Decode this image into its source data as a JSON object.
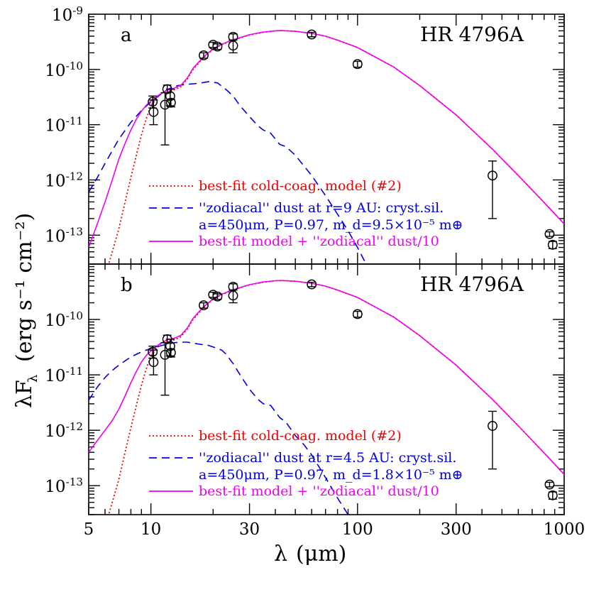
{
  "figure": {
    "xlabel_symbol": "λ",
    "xlabel_unit": "(μm)",
    "ylabel_main": "λF",
    "ylabel_sub": "λ",
    "ylabel_unit": "(erg s⁻¹ cm⁻²)"
  },
  "chart_data": [
    {
      "type": "line",
      "panel_label": "a",
      "title": "HR 4796A",
      "x_scale": "log",
      "y_scale": "log",
      "xlim": [
        5,
        1000
      ],
      "ylim": [
        3e-14,
        1e-09
      ],
      "x_ticks": [
        5,
        10,
        30,
        100,
        300,
        1000
      ],
      "x_tick_labels": [
        "5",
        "10",
        "30",
        "100",
        "300",
        "1000"
      ],
      "y_ticks": [
        1e-13,
        1e-12,
        1e-11,
        1e-10,
        1e-09
      ],
      "y_tick_labels": [
        "10⁻¹³",
        "10⁻¹²",
        "10⁻¹¹",
        "10⁻¹⁰",
        "10⁻⁹"
      ],
      "legend_position": "lower-center",
      "series": [
        {
          "name": "best-fit cold-coag. model (#2)",
          "color": "#ee0000",
          "style": "dotted",
          "x": [
            6.0,
            6.5,
            7.0,
            7.5,
            8.0,
            8.5,
            9.0,
            9.5,
            10.0,
            11.0,
            12.0,
            13.0,
            14.0,
            15.0,
            16.0,
            18.0,
            20.0,
            22.0,
            25.0,
            30.0,
            35.0,
            40.0,
            43.0,
            50.0,
            60.0,
            70.0,
            80.0,
            100.0,
            150.0,
            200.0,
            300.0,
            450.0,
            600.0,
            800.0,
            1000.0
          ],
          "y": [
            1.8e-14,
            5e-14,
            1.3e-13,
            4e-13,
            1.1e-12,
            2.8e-12,
            6.5e-12,
            1.3e-11,
            2.2e-11,
            3.5e-11,
            4.1e-11,
            4.3e-11,
            4.9e-11,
            6.7e-11,
            1e-10,
            1.65e-10,
            2.3e-10,
            2.8e-10,
            3.4e-10,
            4.2e-10,
            4.7e-10,
            5e-10,
            5.05e-10,
            4.9e-10,
            4.5e-10,
            4e-10,
            3.4e-10,
            2.5e-10,
            1.1e-10,
            5.1e-11,
            1.5e-11,
            3.6e-12,
            1.2e-12,
            3.9e-13,
            1.6e-13
          ]
        },
        {
          "name": "''zodiacal'' dust at r=9 AU: cryst.sil. a=450μm, P=0.97, m_d=9.5×10⁻⁵ m⊕",
          "color": "#0000dd",
          "style": "dashed",
          "x": [
            5.0,
            5.5,
            6.0,
            7.0,
            8.0,
            9.0,
            10.0,
            11.0,
            12.0,
            13.0,
            15.0,
            17.0,
            19.0,
            21.0,
            23.0,
            25.0,
            27.0,
            30.0,
            33.0,
            35.0,
            38.0,
            42.0,
            45.0,
            50.0,
            60.0,
            70.0,
            80.0,
            90.0,
            100.0,
            110.0
          ],
          "y": [
            6e-13,
            1.1e-12,
            2e-12,
            5.5e-12,
            1.1e-11,
            1.8e-11,
            2.6e-11,
            3.4e-11,
            4.3e-11,
            5e-11,
            5.4e-11,
            5.6e-11,
            6e-11,
            5.7e-11,
            4.4e-11,
            3.3e-11,
            2.2e-11,
            1.4e-11,
            9.5e-12,
            8e-12,
            7e-12,
            4.4e-12,
            4e-12,
            2.8e-12,
            1.2e-12,
            5.2e-13,
            2.4e-13,
            1.2e-13,
            6e-14,
            3e-14
          ]
        },
        {
          "name": "best-fit model + ''zodiacal'' dust/10",
          "color": "#ee00ee",
          "style": "solid",
          "x": [
            5.0,
            5.5,
            6.0,
            6.5,
            7.0,
            7.5,
            8.0,
            8.5,
            9.0,
            9.5,
            10.0,
            11.0,
            12.0,
            13.0,
            14.0,
            15.0,
            16.0,
            18.0,
            20.0,
            22.0,
            25.0,
            30.0,
            35.0,
            40.0,
            43.0,
            50.0,
            60.0,
            70.0,
            80.0,
            100.0,
            150.0,
            200.0,
            300.0,
            450.0,
            600.0,
            800.0,
            1000.0
          ],
          "y": [
            6e-14,
            1.6e-13,
            4e-13,
            1e-12,
            2.4e-12,
            4.6e-12,
            8e-12,
            1.25e-11,
            1.75e-11,
            2.25e-11,
            2.7e-11,
            3.5e-11,
            4.2e-11,
            4.6e-11,
            5.2e-11,
            7e-11,
            1.05e-10,
            1.7e-10,
            2.35e-10,
            2.85e-10,
            3.45e-10,
            4.25e-10,
            4.75e-10,
            5e-10,
            5.05e-10,
            4.9e-10,
            4.5e-10,
            4e-10,
            3.4e-10,
            2.5e-10,
            1.1e-10,
            5.1e-11,
            1.5e-11,
            3.6e-12,
            1.2e-12,
            3.9e-13,
            1.6e-13
          ]
        }
      ],
      "points": [
        {
          "x": 10.2,
          "y": 2.6e-11,
          "ylo": 2e-11,
          "yhi": 3.3e-11
        },
        {
          "x": 10.3,
          "y": 1.7e-11,
          "ylo": 1e-11,
          "yhi": 2.8e-11
        },
        {
          "x": 11.7,
          "y": 2.3e-11,
          "ylo": 4.3e-12,
          "yhi": 3.8e-11
        },
        {
          "x": 12.0,
          "y": 4.4e-11,
          "ylo": 3.8e-11,
          "yhi": 5.2e-11
        },
        {
          "x": 12.4,
          "y": 3.3e-11,
          "ylo": 2.2e-11,
          "yhi": 4.4e-11
        },
        {
          "x": 12.5,
          "y": 2.5e-11,
          "ylo": 2.1e-11,
          "yhi": 2.9e-11
        },
        {
          "x": 18.0,
          "y": 1.8e-10,
          "ylo": 1.6e-10,
          "yhi": 2e-10
        },
        {
          "x": 20.0,
          "y": 2.8e-10,
          "ylo": 2.5e-10,
          "yhi": 3.1e-10
        },
        {
          "x": 21.0,
          "y": 2.6e-10,
          "ylo": 2.3e-10,
          "yhi": 2.9e-10
        },
        {
          "x": 25.0,
          "y": 3.9e-10,
          "ylo": 3.4e-10,
          "yhi": 4.4e-10
        },
        {
          "x": 25.0,
          "y": 2.7e-10,
          "ylo": 2e-10,
          "yhi": 3.4e-10
        },
        {
          "x": 60.0,
          "y": 4.3e-10,
          "ylo": 3.9e-10,
          "yhi": 4.7e-10
        },
        {
          "x": 100.0,
          "y": 1.25e-10,
          "ylo": 1.1e-10,
          "yhi": 1.4e-10
        },
        {
          "x": 450.0,
          "y": 1.2e-12,
          "ylo": 2e-13,
          "yhi": 2.2e-12
        },
        {
          "x": 850.0,
          "y": 1.05e-13,
          "ylo": 9.5e-14,
          "yhi": 1.15e-13
        },
        {
          "x": 880.0,
          "y": 6.7e-14,
          "ylo": 5.7e-14,
          "yhi": 7.7e-14
        }
      ],
      "legend": [
        {
          "lines": [
            "best-fit cold-coag. model (#2)"
          ],
          "color": "#ee0000",
          "style": "dotted"
        },
        {
          "lines": [
            "''zodiacal'' dust at r=9 AU: cryst.sil.",
            "a=450μm, P=0.97, m_d=9.5×10⁻⁵ m⊕"
          ],
          "color": "#0000dd",
          "style": "dashed"
        },
        {
          "lines": [
            "best-fit model + ''zodiacal'' dust/10"
          ],
          "color": "#ee00ee",
          "style": "solid"
        }
      ]
    },
    {
      "type": "line",
      "panel_label": "b",
      "title": "HR 4796A",
      "x_scale": "log",
      "y_scale": "log",
      "xlim": [
        5,
        1000
      ],
      "ylim": [
        3e-14,
        1e-09
      ],
      "x_ticks": [
        5,
        10,
        30,
        100,
        300,
        1000
      ],
      "x_tick_labels": [
        "5",
        "10",
        "30",
        "100",
        "300",
        "1000"
      ],
      "y_ticks": [
        1e-13,
        1e-12,
        1e-11,
        1e-10
      ],
      "y_tick_labels": [
        "10⁻¹³",
        "10⁻¹²",
        "10⁻¹¹",
        "10⁻¹⁰"
      ],
      "legend_position": "lower-center",
      "series": [
        {
          "name": "best-fit cold-coag. model (#2)",
          "color": "#ee0000",
          "style": "dotted",
          "x": [
            6.0,
            6.5,
            7.0,
            7.5,
            8.0,
            8.5,
            9.0,
            9.5,
            10.0,
            11.0,
            12.0,
            13.0,
            14.0,
            15.0,
            16.0,
            18.0,
            20.0,
            22.0,
            25.0,
            30.0,
            35.0,
            40.0,
            43.0,
            50.0,
            60.0,
            70.0,
            80.0,
            100.0,
            150.0,
            200.0,
            300.0,
            450.0,
            600.0,
            800.0,
            1000.0
          ],
          "y": [
            1.8e-14,
            5e-14,
            1.3e-13,
            4e-13,
            1.1e-12,
            2.8e-12,
            6.5e-12,
            1.3e-11,
            2.2e-11,
            3.5e-11,
            4.1e-11,
            4.3e-11,
            4.9e-11,
            6.7e-11,
            1e-10,
            1.65e-10,
            2.3e-10,
            2.8e-10,
            3.4e-10,
            4.2e-10,
            4.7e-10,
            5e-10,
            5.05e-10,
            4.9e-10,
            4.5e-10,
            4e-10,
            3.4e-10,
            2.5e-10,
            1.1e-10,
            5.1e-11,
            1.5e-11,
            3.6e-12,
            1.2e-12,
            3.9e-13,
            1.6e-13
          ]
        },
        {
          "name": "''zodiacal'' dust at r=4.5 AU: cryst.sil. a=450μm, P=0.97, m_d=1.8×10⁻⁵ m⊕",
          "color": "#0000dd",
          "style": "dashed",
          "x": [
            5.0,
            5.5,
            6.0,
            6.5,
            7.0,
            8.0,
            9.0,
            10.0,
            11.0,
            12.0,
            13.0,
            14.0,
            15.0,
            17.0,
            19.0,
            21.0,
            22.0,
            23.0,
            25.0,
            27.0,
            30.0,
            33.0,
            35.0,
            38.0,
            42.0,
            45.0,
            50.0,
            55.0,
            60.0,
            70.0,
            80.0,
            90.0
          ],
          "y": [
            3.5e-12,
            6e-12,
            9e-12,
            1.2e-11,
            1.5e-11,
            2.1e-11,
            2.6e-11,
            3e-11,
            3.3e-11,
            3.6e-11,
            3.8e-11,
            3.9e-11,
            3.9e-11,
            3.6e-11,
            3.4e-11,
            3e-11,
            2.8e-11,
            2.4e-11,
            1.6e-11,
            1e-11,
            5.5e-12,
            3.6e-12,
            3e-12,
            2.8e-12,
            1.7e-12,
            1.4e-12,
            8e-13,
            5.5e-13,
            3.6e-13,
            1.4e-13,
            6e-14,
            3e-14
          ]
        },
        {
          "name": "best-fit model + ''zodiacal'' dust/10",
          "color": "#ee00ee",
          "style": "solid",
          "x": [
            5.0,
            5.5,
            6.0,
            6.5,
            7.0,
            7.5,
            8.0,
            8.5,
            9.0,
            9.5,
            10.0,
            11.0,
            12.0,
            13.0,
            14.0,
            15.0,
            16.0,
            18.0,
            20.0,
            22.0,
            25.0,
            30.0,
            35.0,
            40.0,
            43.0,
            50.0,
            60.0,
            70.0,
            80.0,
            100.0,
            150.0,
            200.0,
            300.0,
            450.0,
            600.0,
            800.0,
            1000.0
          ],
          "y": [
            4e-13,
            6.5e-13,
            1e-12,
            1.5e-12,
            2.4e-12,
            4.2e-12,
            7.2e-12,
            1.15e-11,
            1.7e-11,
            2.25e-11,
            2.7e-11,
            3.6e-11,
            4.3e-11,
            4.6e-11,
            5.2e-11,
            7e-11,
            1.05e-10,
            1.7e-10,
            2.35e-10,
            2.85e-10,
            3.45e-10,
            4.25e-10,
            4.75e-10,
            5e-10,
            5.05e-10,
            4.9e-10,
            4.5e-10,
            4e-10,
            3.4e-10,
            2.5e-10,
            1.1e-10,
            5.1e-11,
            1.5e-11,
            3.6e-12,
            1.2e-12,
            3.9e-13,
            1.6e-13
          ]
        }
      ],
      "points": [
        {
          "x": 10.2,
          "y": 2.6e-11,
          "ylo": 2e-11,
          "yhi": 3.3e-11
        },
        {
          "x": 10.3,
          "y": 1.7e-11,
          "ylo": 1e-11,
          "yhi": 2.8e-11
        },
        {
          "x": 11.7,
          "y": 2.3e-11,
          "ylo": 4.3e-12,
          "yhi": 3.8e-11
        },
        {
          "x": 12.0,
          "y": 4.4e-11,
          "ylo": 3.8e-11,
          "yhi": 5.2e-11
        },
        {
          "x": 12.4,
          "y": 3.3e-11,
          "ylo": 2.2e-11,
          "yhi": 4.4e-11
        },
        {
          "x": 12.5,
          "y": 2.5e-11,
          "ylo": 2.1e-11,
          "yhi": 2.9e-11
        },
        {
          "x": 18.0,
          "y": 1.8e-10,
          "ylo": 1.6e-10,
          "yhi": 2e-10
        },
        {
          "x": 20.0,
          "y": 2.8e-10,
          "ylo": 2.5e-10,
          "yhi": 3.1e-10
        },
        {
          "x": 21.0,
          "y": 2.6e-10,
          "ylo": 2.3e-10,
          "yhi": 2.9e-10
        },
        {
          "x": 25.0,
          "y": 3.9e-10,
          "ylo": 3.4e-10,
          "yhi": 4.4e-10
        },
        {
          "x": 25.0,
          "y": 2.7e-10,
          "ylo": 2e-10,
          "yhi": 3.4e-10
        },
        {
          "x": 60.0,
          "y": 4.3e-10,
          "ylo": 3.9e-10,
          "yhi": 4.7e-10
        },
        {
          "x": 100.0,
          "y": 1.25e-10,
          "ylo": 1.1e-10,
          "yhi": 1.4e-10
        },
        {
          "x": 450.0,
          "y": 1.2e-12,
          "ylo": 2e-13,
          "yhi": 2.2e-12
        },
        {
          "x": 850.0,
          "y": 1.05e-13,
          "ylo": 9.5e-14,
          "yhi": 1.15e-13
        },
        {
          "x": 880.0,
          "y": 6.7e-14,
          "ylo": 5.7e-14,
          "yhi": 7.7e-14
        }
      ],
      "legend": [
        {
          "lines": [
            "best-fit cold-coag. model (#2)"
          ],
          "color": "#ee0000",
          "style": "dotted"
        },
        {
          "lines": [
            "''zodiacal'' dust at r=4.5 AU: cryst.sil.",
            "a=450μm, P=0.97, m_d=1.8×10⁻⁵ m⊕"
          ],
          "color": "#0000dd",
          "style": "dashed"
        },
        {
          "lines": [
            "best-fit model + ''zodiacal'' dust/10"
          ],
          "color": "#ee00ee",
          "style": "solid"
        }
      ]
    }
  ]
}
